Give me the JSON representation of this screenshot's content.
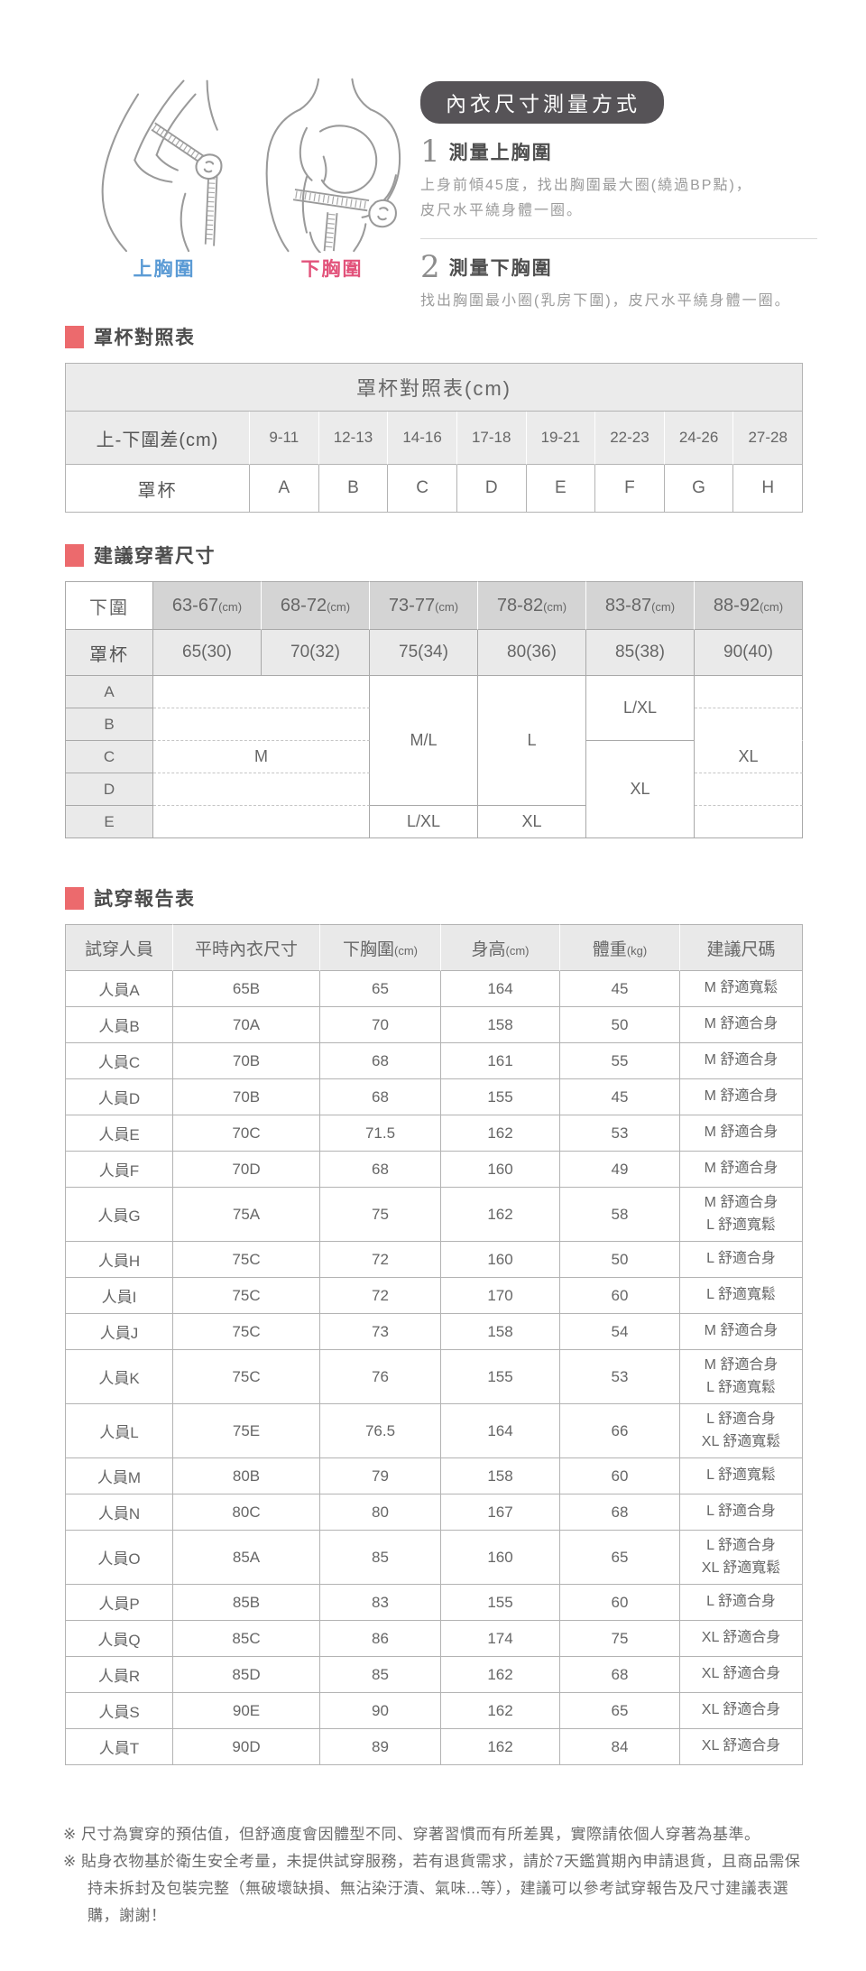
{
  "header": {
    "title": "內衣尺寸測量方式",
    "figure_labels": [
      {
        "label": "上胸圍",
        "color": "#5b9bd5"
      },
      {
        "label": "下胸圍",
        "color": "#e2537b"
      }
    ],
    "steps": [
      {
        "num": "1",
        "heading": "測量上胸圍",
        "body": "上身前傾45度，找出胸圍最大圈(繞過BP點)，\n皮尺水平繞身體一圈。"
      },
      {
        "num": "2",
        "heading": "測量下胸圍",
        "body": "找出胸圍最小圈(乳房下圍)，皮尺水平繞身體一圈。"
      }
    ]
  },
  "cup_table": {
    "section_title": "罩杯對照表",
    "table_title": "罩杯對照表(cm)",
    "diff_label": "上-下圍差(cm)",
    "ranges": [
      "9-11",
      "12-13",
      "14-16",
      "17-18",
      "19-21",
      "22-23",
      "24-26",
      "27-28"
    ],
    "cup_label": "罩杯",
    "cups": [
      "A",
      "B",
      "C",
      "D",
      "E",
      "F",
      "G",
      "H"
    ]
  },
  "size_table": {
    "section_title": "建議穿著尺寸",
    "underband_label": "下圍",
    "unit_cm": "(cm)",
    "underband_ranges": [
      "63-67",
      "68-72",
      "73-77",
      "78-82",
      "83-87",
      "88-92"
    ],
    "cup_label": "罩杯",
    "band_sizes": [
      "65(30)",
      "70(32)",
      "75(34)",
      "80(36)",
      "85(38)",
      "90(40)"
    ],
    "cup_rows": [
      "A",
      "B",
      "C",
      "D",
      "E"
    ],
    "cells": {
      "m": "M",
      "ml": "M/L",
      "l": "L",
      "lxl_85": "L/XL",
      "xl_85": "XL",
      "xl_90": "XL",
      "e_75": "L/XL",
      "e_80": "XL"
    }
  },
  "fit_table": {
    "section_title": "試穿報告表",
    "headers": [
      {
        "label": "試穿人員",
        "unit": ""
      },
      {
        "label": "平時內衣尺寸",
        "unit": ""
      },
      {
        "label": "下胸圍",
        "unit": "(cm)"
      },
      {
        "label": "身高",
        "unit": "(cm)"
      },
      {
        "label": "體重",
        "unit": "(kg)"
      },
      {
        "label": "建議尺碼",
        "unit": ""
      }
    ],
    "rows": [
      {
        "person": "人員A",
        "usual": "65B",
        "underbust": "65",
        "height": "164",
        "weight": "45",
        "suggestion": [
          "M 舒適寬鬆"
        ]
      },
      {
        "person": "人員B",
        "usual": "70A",
        "underbust": "70",
        "height": "158",
        "weight": "50",
        "suggestion": [
          "M 舒適合身"
        ]
      },
      {
        "person": "人員C",
        "usual": "70B",
        "underbust": "68",
        "height": "161",
        "weight": "55",
        "suggestion": [
          "M 舒適合身"
        ]
      },
      {
        "person": "人員D",
        "usual": "70B",
        "underbust": "68",
        "height": "155",
        "weight": "45",
        "suggestion": [
          "M 舒適合身"
        ]
      },
      {
        "person": "人員E",
        "usual": "70C",
        "underbust": "71.5",
        "height": "162",
        "weight": "53",
        "suggestion": [
          "M 舒適合身"
        ]
      },
      {
        "person": "人員F",
        "usual": "70D",
        "underbust": "68",
        "height": "160",
        "weight": "49",
        "suggestion": [
          "M 舒適合身"
        ]
      },
      {
        "person": "人員G",
        "usual": "75A",
        "underbust": "75",
        "height": "162",
        "weight": "58",
        "suggestion": [
          "M 舒適合身",
          "L 舒適寬鬆"
        ]
      },
      {
        "person": "人員H",
        "usual": "75C",
        "underbust": "72",
        "height": "160",
        "weight": "50",
        "suggestion": [
          "L 舒適合身"
        ]
      },
      {
        "person": "人員I",
        "usual": "75C",
        "underbust": "72",
        "height": "170",
        "weight": "60",
        "suggestion": [
          "L 舒適寬鬆"
        ]
      },
      {
        "person": "人員J",
        "usual": "75C",
        "underbust": "73",
        "height": "158",
        "weight": "54",
        "suggestion": [
          "M 舒適合身"
        ]
      },
      {
        "person": "人員K",
        "usual": "75C",
        "underbust": "76",
        "height": "155",
        "weight": "53",
        "suggestion": [
          "M 舒適合身",
          "L 舒適寬鬆"
        ]
      },
      {
        "person": "人員L",
        "usual": "75E",
        "underbust": "76.5",
        "height": "164",
        "weight": "66",
        "suggestion": [
          "L 舒適合身",
          "XL 舒適寬鬆"
        ]
      },
      {
        "person": "人員M",
        "usual": "80B",
        "underbust": "79",
        "height": "158",
        "weight": "60",
        "suggestion": [
          "L 舒適寬鬆"
        ]
      },
      {
        "person": "人員N",
        "usual": "80C",
        "underbust": "80",
        "height": "167",
        "weight": "68",
        "suggestion": [
          "L 舒適合身"
        ]
      },
      {
        "person": "人員O",
        "usual": "85A",
        "underbust": "85",
        "height": "160",
        "weight": "65",
        "suggestion": [
          "L 舒適合身",
          "XL 舒適寬鬆"
        ]
      },
      {
        "person": "人員P",
        "usual": "85B",
        "underbust": "83",
        "height": "155",
        "weight": "60",
        "suggestion": [
          "L 舒適合身"
        ]
      },
      {
        "person": "人員Q",
        "usual": "85C",
        "underbust": "86",
        "height": "174",
        "weight": "75",
        "suggestion": [
          "XL 舒適合身"
        ]
      },
      {
        "person": "人員R",
        "usual": "85D",
        "underbust": "85",
        "height": "162",
        "weight": "68",
        "suggestion": [
          "XL 舒適合身"
        ]
      },
      {
        "person": "人員S",
        "usual": "90E",
        "underbust": "90",
        "height": "162",
        "weight": "65",
        "suggestion": [
          "XL 舒適合身"
        ]
      },
      {
        "person": "人員T",
        "usual": "90D",
        "underbust": "89",
        "height": "162",
        "weight": "84",
        "suggestion": [
          "XL 舒適合身"
        ]
      }
    ]
  },
  "footnotes": [
    "※ 尺寸為實穿的預估值，但舒適度會因體型不同、穿著習慣而有所差異，實際請依個人穿著為基準。",
    "※ 貼身衣物基於衛生安全考量，未提供試穿服務，若有退貨需求，請於7天鑑賞期內申請退貨，且商品需保持未拆封及包裝完整（無破壞缺損、無沾染汙漬、氣味...等），建議可以參考試穿報告及尺寸建議表選購，謝謝！"
  ],
  "colors": {
    "accent_red": "#ec6a6d",
    "pill_bg": "#565357",
    "upper_bust_blue": "#5b9bd5",
    "lower_bust_pink": "#e2537b"
  }
}
